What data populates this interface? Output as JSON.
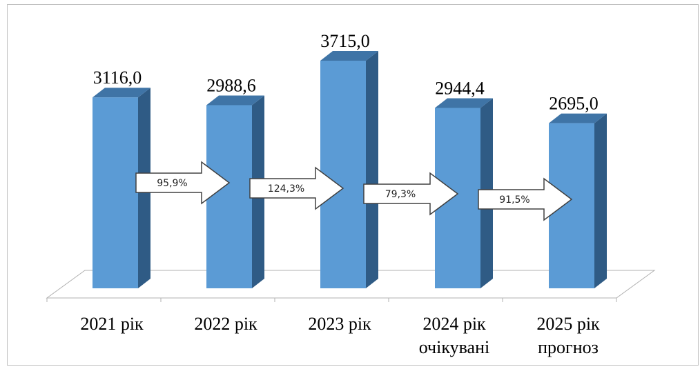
{
  "chart_data": {
    "type": "bar",
    "categories": [
      [
        "2021 рік"
      ],
      [
        "2022 рік"
      ],
      [
        "2023 рік"
      ],
      [
        "2024 рік",
        "очікувані"
      ],
      [
        "2025 рік",
        "прогноз"
      ]
    ],
    "values": [
      3116.0,
      2988.6,
      3715.0,
      2944.4,
      2695.0
    ],
    "value_labels": [
      "3116,0",
      "2988,6",
      "3715,0",
      "2944,4",
      "2695,0"
    ],
    "growth_labels": [
      "95,9%",
      "124,3%",
      "79,3%",
      "91,5%"
    ],
    "ylim": [
      0,
      3715.0
    ],
    "grid": false,
    "legend": "none",
    "style": "3d-column",
    "colors": {
      "bar_front": "#5b9bd5",
      "bar_side": "#2f5b85",
      "bar_top": "#3f74a6",
      "arrow_fill": "#ffffff",
      "arrow_stroke": "#404040"
    }
  }
}
